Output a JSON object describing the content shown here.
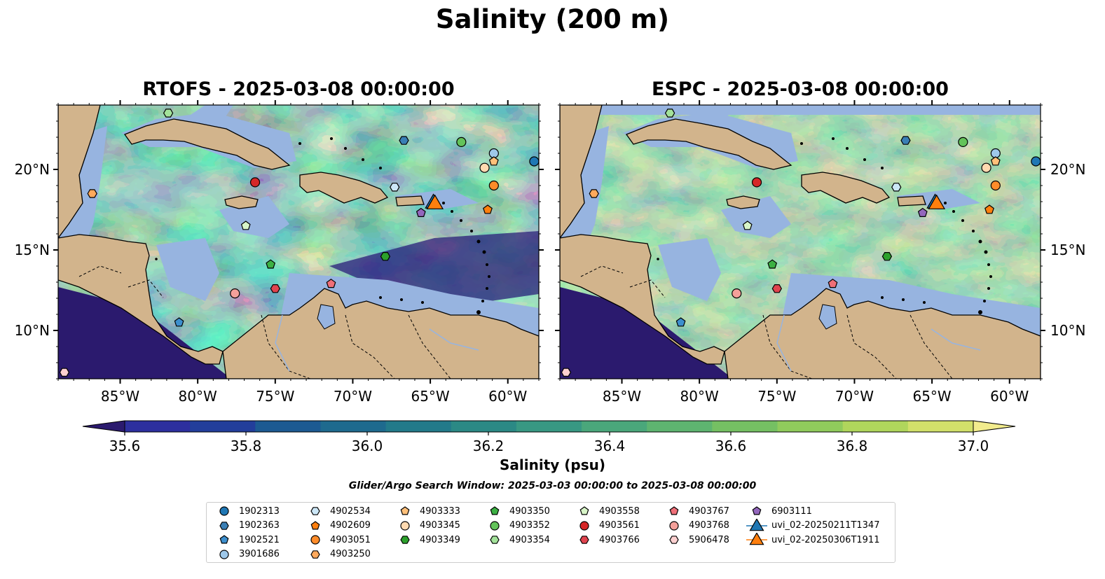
{
  "title": "Salinity (200 m)",
  "panels": [
    {
      "title": "RTOFS - 2025-03-08 00:00:00"
    },
    {
      "title": "ESPC - 2025-03-08 00:00:00"
    }
  ],
  "map_extent": {
    "lon_min": -89,
    "lon_max": -58,
    "lat_min": 7,
    "lat_max": 24
  },
  "lon_ticks": [
    "85°W",
    "80°W",
    "75°W",
    "70°W",
    "65°W",
    "60°W"
  ],
  "lat_ticks": [
    "20°N",
    "15°N",
    "10°N"
  ],
  "colorbar": {
    "label": "Salinity (psu)",
    "min": 35.6,
    "max": 37.0,
    "step": 0.1,
    "extend": "both",
    "ticks": [
      "35.6",
      "35.8",
      "36.0",
      "36.2",
      "36.4",
      "36.6",
      "36.8",
      "37.0"
    ],
    "colors": [
      "#2b1a6e",
      "#2d2f9e",
      "#223e9b",
      "#1c5a92",
      "#1e6a8e",
      "#227a8a",
      "#2b8985",
      "#389883",
      "#4aa77b",
      "#5eb470",
      "#75c063",
      "#90cb5c",
      "#b0d65c",
      "#d2e06a",
      "#f2ec8d"
    ]
  },
  "search_window": "Glider/Argo Search Window: 2025-03-03 00:00:00 to 2025-03-08 00:00:00",
  "colors": {
    "land": "#d2b48c",
    "shallow": "#97b4e0",
    "deep_low": "#2b1a6e"
  },
  "legend": [
    {
      "label": "1902313",
      "marker": "circle",
      "color": "#1f77b4"
    },
    {
      "label": "1902363",
      "marker": "hexagon",
      "color": "#3a7fb5"
    },
    {
      "label": "1902521",
      "marker": "pentagon",
      "color": "#3d8fce"
    },
    {
      "label": "3901686",
      "marker": "circle",
      "color": "#9ec8ea"
    },
    {
      "label": "4902534",
      "marker": "hexagon",
      "color": "#cce7f7"
    },
    {
      "label": "4902609",
      "marker": "pentagon",
      "color": "#ff7f0e"
    },
    {
      "label": "4903051",
      "marker": "circle",
      "color": "#ff8c2a"
    },
    {
      "label": "4903250",
      "marker": "hexagon",
      "color": "#ffa95c"
    },
    {
      "label": "4903333",
      "marker": "pentagon",
      "color": "#ffc07a"
    },
    {
      "label": "4903345",
      "marker": "circle",
      "color": "#ffd9b0"
    },
    {
      "label": "4903349",
      "marker": "hexagon",
      "color": "#2ca02c"
    },
    {
      "label": "4903350",
      "marker": "pentagon",
      "color": "#3cb043"
    },
    {
      "label": "4903352",
      "marker": "circle",
      "color": "#63c35a"
    },
    {
      "label": "4903354",
      "marker": "hexagon",
      "color": "#a3e29a"
    },
    {
      "label": "4903558",
      "marker": "pentagon",
      "color": "#d8f5c8"
    },
    {
      "label": "4903561",
      "marker": "circle",
      "color": "#d62728"
    },
    {
      "label": "4903766",
      "marker": "hexagon",
      "color": "#e0444f"
    },
    {
      "label": "4903767",
      "marker": "pentagon",
      "color": "#ef6f78"
    },
    {
      "label": "4903768",
      "marker": "circle",
      "color": "#f4a09a"
    },
    {
      "label": "5906478",
      "marker": "hexagon",
      "color": "#fcd0d0"
    },
    {
      "label": "6903111",
      "marker": "pentagon",
      "color": "#9467bd"
    },
    {
      "label": "uvi_02-20250211T1347",
      "marker": "triangle-line",
      "color": "#1f77b4"
    },
    {
      "label": "uvi_02-20250306T1911",
      "marker": "triangle-line",
      "color": "#ff7f0e"
    }
  ],
  "observations": [
    {
      "id": "1902313",
      "lon": -58.3,
      "lat": 20.5
    },
    {
      "id": "1902363",
      "lon": -66.7,
      "lat": 21.8
    },
    {
      "id": "1902521",
      "lon": -81.2,
      "lat": 10.5
    },
    {
      "id": "3901686",
      "lon": -60.9,
      "lat": 21.0
    },
    {
      "id": "4902534",
      "lon": -67.3,
      "lat": 18.9
    },
    {
      "id": "4902609",
      "lon": -61.3,
      "lat": 17.5
    },
    {
      "id": "4903051",
      "lon": -60.9,
      "lat": 19.0
    },
    {
      "id": "4903250",
      "lon": -86.8,
      "lat": 18.5
    },
    {
      "id": "4903333",
      "lon": -60.9,
      "lat": 20.5
    },
    {
      "id": "4903345",
      "lon": -61.5,
      "lat": 20.1
    },
    {
      "id": "4903349",
      "lon": -67.9,
      "lat": 14.6
    },
    {
      "id": "4903350",
      "lon": -75.3,
      "lat": 14.1
    },
    {
      "id": "4903352",
      "lon": -63.0,
      "lat": 21.7
    },
    {
      "id": "4903354",
      "lon": -81.9,
      "lat": 23.5
    },
    {
      "id": "4903558",
      "lon": -76.9,
      "lat": 16.5
    },
    {
      "id": "4903561",
      "lon": -76.3,
      "lat": 19.2
    },
    {
      "id": "4903766",
      "lon": -75.0,
      "lat": 12.6
    },
    {
      "id": "4903767",
      "lon": -71.4,
      "lat": 12.9
    },
    {
      "id": "4903768",
      "lon": -77.6,
      "lat": 12.3
    },
    {
      "id": "5906478",
      "lon": -88.6,
      "lat": 7.4
    },
    {
      "id": "6903111",
      "lon": -65.6,
      "lat": 17.3
    }
  ],
  "gliders": [
    {
      "id": "uvi_02-20250211T1347",
      "lon": -64.8,
      "lat": 18.0
    },
    {
      "id": "uvi_02-20250306T1911",
      "lon": -64.7,
      "lat": 17.95
    }
  ]
}
